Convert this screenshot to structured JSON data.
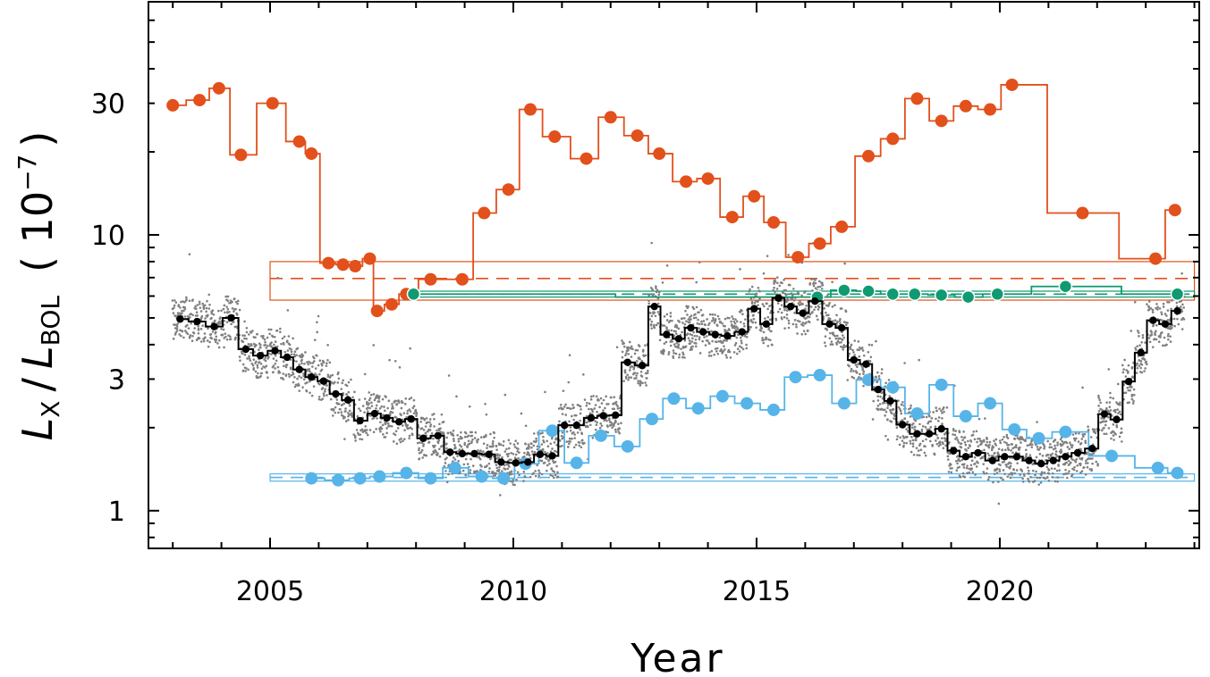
{
  "chart_data": {
    "type": "line",
    "xlabel": "Year",
    "ylabel": {
      "L1": "L",
      "sub1": "X",
      "slash": "/",
      "L2": "L",
      "sub2": "BOL",
      "unit_open": "( 10",
      "unit_exp": "−7",
      "unit_close": ")"
    },
    "y_scale": "log",
    "xlim": [
      2002.5,
      2024.1
    ],
    "ylim": [
      0.73,
      70
    ],
    "x_ticks": [
      2005,
      2010,
      2015,
      2020
    ],
    "y_ticks": [
      1,
      3,
      10,
      30
    ],
    "colors": {
      "orange": "#e2501b",
      "green": "#109a72",
      "blue": "#56b4e9",
      "black": "#000000",
      "gray": "#808080"
    },
    "series": [
      {
        "color": "orange",
        "x": [
          2003.0,
          2003.55,
          2003.95,
          2004.4,
          2005.05,
          2005.6,
          2005.85,
          2006.2,
          2006.5,
          2006.75,
          2007.05,
          2007.2,
          2007.5,
          2007.8,
          2008.3,
          2008.95,
          2009.4,
          2009.9,
          2010.35,
          2010.85,
          2011.5,
          2012.0,
          2012.55,
          2013.0,
          2013.55,
          2014.0,
          2014.5,
          2014.95,
          2015.35,
          2015.85,
          2016.3,
          2016.75,
          2017.3,
          2017.8,
          2018.3,
          2018.8,
          2019.3,
          2019.8,
          2020.25,
          2021.7,
          2023.2,
          2023.6
        ],
        "y": [
          29.5,
          30.8,
          34.0,
          19.5,
          30.0,
          21.8,
          19.7,
          7.9,
          7.8,
          7.7,
          8.2,
          5.3,
          5.6,
          6.1,
          6.9,
          6.9,
          12.0,
          14.6,
          28.5,
          22.7,
          18.9,
          26.7,
          22.9,
          19.7,
          15.6,
          16.0,
          11.6,
          13.8,
          11.1,
          8.3,
          9.3,
          10.7,
          19.3,
          22.3,
          31.2,
          25.9,
          29.3,
          28.5,
          35.0,
          12.0,
          8.2,
          12.3
        ]
      },
      {
        "color": "green",
        "x": [
          2007.95,
          2016.25,
          2016.8,
          2017.3,
          2017.8,
          2018.25,
          2018.8,
          2019.35,
          2019.95,
          2021.35,
          2023.65
        ],
        "y": [
          6.1,
          5.95,
          6.3,
          6.25,
          6.1,
          6.1,
          6.05,
          5.95,
          6.1,
          6.5,
          6.1
        ]
      },
      {
        "color": "blue",
        "x": [
          2005.85,
          2006.4,
          2006.85,
          2007.25,
          2007.8,
          2008.3,
          2008.8,
          2009.35,
          2009.8,
          2010.25,
          2010.8,
          2011.3,
          2011.8,
          2012.35,
          2012.85,
          2013.3,
          2013.8,
          2014.3,
          2014.8,
          2015.35,
          2015.8,
          2016.3,
          2016.8,
          2017.3,
          2017.8,
          2018.3,
          2018.8,
          2019.3,
          2019.8,
          2020.3,
          2020.8,
          2021.35,
          2022.3,
          2023.25,
          2023.65
        ],
        "y": [
          1.31,
          1.29,
          1.31,
          1.33,
          1.37,
          1.31,
          1.43,
          1.33,
          1.31,
          1.48,
          1.95,
          1.49,
          1.87,
          1.71,
          2.15,
          2.55,
          2.35,
          2.6,
          2.45,
          2.32,
          3.05,
          3.1,
          2.45,
          2.98,
          2.8,
          2.25,
          2.86,
          2.2,
          2.45,
          1.97,
          1.83,
          1.93,
          1.58,
          1.43,
          1.37
        ]
      },
      {
        "color": "black",
        "x": [
          2003.15,
          2003.5,
          2003.85,
          2004.2,
          2004.5,
          2004.8,
          2005.1,
          2005.35,
          2005.6,
          2005.85,
          2006.1,
          2006.35,
          2006.6,
          2006.85,
          2007.15,
          2007.4,
          2007.65,
          2007.9,
          2008.15,
          2008.45,
          2008.7,
          2008.95,
          2009.2,
          2009.5,
          2009.75,
          2010.05,
          2010.3,
          2010.55,
          2010.8,
          2011.05,
          2011.3,
          2011.6,
          2011.85,
          2012.1,
          2012.35,
          2012.65,
          2012.9,
          2013.15,
          2013.4,
          2013.65,
          2013.9,
          2014.15,
          2014.4,
          2014.7,
          2014.95,
          2015.2,
          2015.45,
          2015.7,
          2015.95,
          2016.2,
          2016.5,
          2016.75,
          2017.0,
          2017.25,
          2017.5,
          2017.75,
          2018.0,
          2018.3,
          2018.55,
          2018.8,
          2019.05,
          2019.3,
          2019.55,
          2019.85,
          2020.1,
          2020.35,
          2020.6,
          2020.85,
          2021.1,
          2021.35,
          2021.6,
          2021.9,
          2022.15,
          2022.4,
          2022.65,
          2022.9,
          2023.15,
          2023.4,
          2023.65
        ],
        "y": [
          4.95,
          4.85,
          4.65,
          5.0,
          3.85,
          3.65,
          3.8,
          3.6,
          3.25,
          3.05,
          2.95,
          2.65,
          2.52,
          2.12,
          2.25,
          2.17,
          2.1,
          2.15,
          1.83,
          1.87,
          1.63,
          1.61,
          1.61,
          1.6,
          1.5,
          1.49,
          1.5,
          1.6,
          1.58,
          2.04,
          2.04,
          2.17,
          2.21,
          2.22,
          3.45,
          3.36,
          5.5,
          4.35,
          4.2,
          4.6,
          4.45,
          4.35,
          4.3,
          4.45,
          5.4,
          4.75,
          5.9,
          5.5,
          5.2,
          5.75,
          4.75,
          4.6,
          3.52,
          3.4,
          2.75,
          2.5,
          2.05,
          1.9,
          1.9,
          1.98,
          1.65,
          1.57,
          1.62,
          1.52,
          1.57,
          1.57,
          1.52,
          1.48,
          1.52,
          1.57,
          1.62,
          1.68,
          2.24,
          2.14,
          2.94,
          3.74,
          4.9,
          4.75,
          5.3
        ]
      }
    ],
    "reference_bands": [
      {
        "color": "orange",
        "x": [
          2005.0,
          2024.0
        ],
        "center": 6.95,
        "range": [
          5.8,
          8.0
        ]
      },
      {
        "color": "green",
        "x": [
          2008.0,
          2024.0
        ],
        "center": 6.1,
        "range": [
          5.95,
          6.25
        ]
      },
      {
        "color": "blue",
        "x": [
          2005.0,
          2024.0
        ],
        "center": 1.32,
        "range": [
          1.28,
          1.36
        ]
      }
    ]
  }
}
